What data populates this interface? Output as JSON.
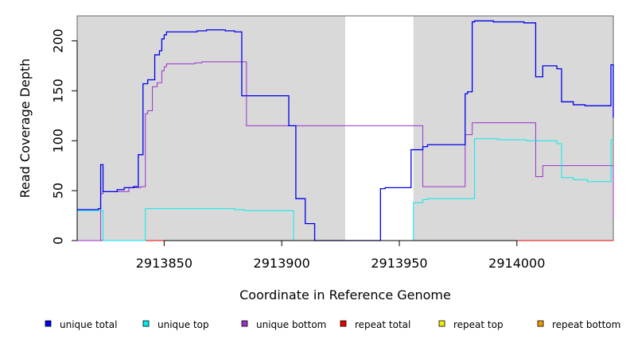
{
  "chart_data": {
    "type": "line",
    "xlabel": "Coordinate in Reference Genome",
    "ylabel": "Read Coverage Depth",
    "xlim": [
      2913813,
      2914041
    ],
    "ylim": [
      0,
      225
    ],
    "x_ticks": [
      2913850,
      2913900,
      2913950,
      2914000
    ],
    "x_tick_labels": [
      "2913850",
      "2913900",
      "2913950",
      "2914000"
    ],
    "y_ticks": [
      0,
      50,
      100,
      150,
      200
    ],
    "y_tick_labels": [
      "0",
      "50",
      "100",
      "150",
      "200"
    ],
    "step": true,
    "shaded_regions": [
      {
        "from": 2913813,
        "to": 2913927,
        "color": "#d9d9d9"
      },
      {
        "from": 2913956,
        "to": 2914041,
        "color": "#d9d9d9"
      }
    ],
    "series": [
      {
        "name": "unique total",
        "color": "#0000ee",
        "points": [
          [
            2913813,
            31
          ],
          [
            2913822,
            32
          ],
          [
            2913823,
            76
          ],
          [
            2913824,
            49
          ],
          [
            2913830,
            51
          ],
          [
            2913833,
            53
          ],
          [
            2913837,
            54
          ],
          [
            2913839,
            86
          ],
          [
            2913841,
            157
          ],
          [
            2913843,
            161
          ],
          [
            2913846,
            186
          ],
          [
            2913848,
            190
          ],
          [
            2913849,
            202
          ],
          [
            2913850,
            206
          ],
          [
            2913851,
            209
          ],
          [
            2913864,
            210
          ],
          [
            2913868,
            211
          ],
          [
            2913876,
            210
          ],
          [
            2913880,
            209
          ],
          [
            2913883,
            145
          ],
          [
            2913903,
            115
          ],
          [
            2913906,
            42
          ],
          [
            2913910,
            17
          ],
          [
            2913914,
            0
          ],
          [
            2913942,
            52
          ],
          [
            2913944,
            53
          ],
          [
            2913955,
            91
          ],
          [
            2913960,
            94
          ],
          [
            2913962,
            96
          ],
          [
            2913978,
            147
          ],
          [
            2913979,
            149
          ],
          [
            2913981,
            219
          ],
          [
            2913982,
            220
          ],
          [
            2913990,
            219
          ],
          [
            2914003,
            218
          ],
          [
            2914008,
            164
          ],
          [
            2914011,
            175
          ],
          [
            2914017,
            172
          ],
          [
            2914019,
            139
          ],
          [
            2914024,
            136
          ],
          [
            2914029,
            135
          ],
          [
            2914040,
            176
          ],
          [
            2914045,
            175
          ],
          [
            2914047,
            123
          ]
        ]
      },
      {
        "name": "unique top",
        "color": "#00eeee",
        "points": [
          [
            2913813,
            30
          ],
          [
            2913823,
            30
          ],
          [
            2913824,
            0
          ],
          [
            2913842,
            32
          ],
          [
            2913870,
            32
          ],
          [
            2913880,
            31
          ],
          [
            2913884,
            30
          ],
          [
            2913905,
            0
          ],
          [
            2913951,
            0
          ],
          [
            2913956,
            38
          ],
          [
            2913960,
            41
          ],
          [
            2913962,
            42
          ],
          [
            2913982,
            102
          ],
          [
            2913992,
            101
          ],
          [
            2914004,
            100
          ],
          [
            2914017,
            97
          ],
          [
            2914019,
            63
          ],
          [
            2914024,
            61
          ],
          [
            2914030,
            59
          ],
          [
            2914040,
            101
          ],
          [
            2914043,
            101
          ]
        ]
      },
      {
        "name": "unique bottom",
        "color": "#9a32cd",
        "points": [
          [
            2913813,
            0
          ],
          [
            2913822,
            0
          ],
          [
            2913823,
            47
          ],
          [
            2913824,
            49
          ],
          [
            2913835,
            53
          ],
          [
            2913840,
            54
          ],
          [
            2913842,
            127
          ],
          [
            2913843,
            130
          ],
          [
            2913845,
            154
          ],
          [
            2913847,
            158
          ],
          [
            2913849,
            170
          ],
          [
            2913850,
            174
          ],
          [
            2913851,
            177
          ],
          [
            2913863,
            178
          ],
          [
            2913866,
            179
          ],
          [
            2913880,
            179
          ],
          [
            2913885,
            115
          ],
          [
            2913905,
            115
          ],
          [
            2913960,
            54
          ],
          [
            2913978,
            106
          ],
          [
            2913981,
            118
          ],
          [
            2914005,
            118
          ],
          [
            2914008,
            64
          ],
          [
            2914011,
            75
          ],
          [
            2914020,
            75
          ],
          [
            2914039,
            75
          ],
          [
            2914045,
            74
          ],
          [
            2914047,
            22
          ]
        ]
      },
      {
        "name": "repeat total",
        "color": "#ee0000",
        "points": [
          [
            2913813,
            0
          ],
          [
            2914041,
            0
          ]
        ]
      },
      {
        "name": "repeat top",
        "color": "#eeee00",
        "points": [
          [
            2913813,
            0
          ],
          [
            2914041,
            0
          ]
        ]
      },
      {
        "name": "repeat bottom",
        "color": "#ee9a00",
        "points": [
          [
            2913813,
            0
          ],
          [
            2914041,
            0
          ]
        ]
      }
    ],
    "legend": [
      {
        "label": "unique total",
        "color": "#0000ee"
      },
      {
        "label": "unique top",
        "color": "#00eeee"
      },
      {
        "label": "unique bottom",
        "color": "#9a32cd"
      },
      {
        "label": "repeat total",
        "color": "#ee0000"
      },
      {
        "label": "repeat top",
        "color": "#eeee00"
      },
      {
        "label": "repeat bottom",
        "color": "#ee9a00"
      }
    ],
    "legend_position": "bottom",
    "grid": false
  }
}
